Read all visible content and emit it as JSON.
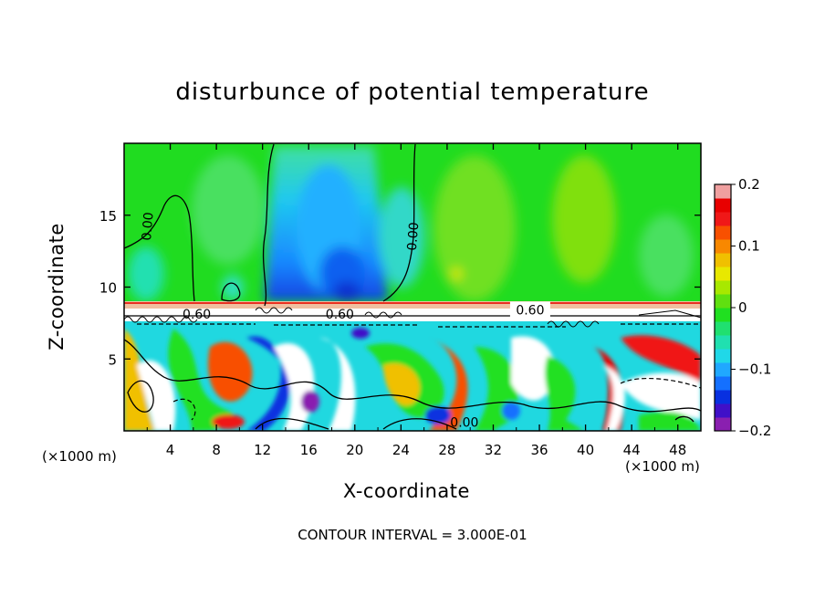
{
  "chart_data": {
    "type": "heatmap",
    "title": "disturbunce of potential temperature",
    "xlabel": "X-coordinate",
    "ylabel": "Z-coordinate",
    "x_unit_left": "(×1000 m)",
    "x_unit_right": "(×1000 m)",
    "xlim": [
      0,
      50
    ],
    "ylim": [
      0,
      20
    ],
    "x_ticks": [
      4,
      8,
      12,
      16,
      20,
      24,
      28,
      32,
      36,
      40,
      44,
      48
    ],
    "y_ticks": [
      5,
      10,
      15
    ],
    "colorbar": {
      "range": [
        -0.2,
        0.2
      ],
      "tick_values": [
        0.2,
        0.1,
        0,
        -0.1,
        -0.2
      ],
      "tick_labels": [
        "0.2",
        "0.1",
        "0",
        "−0.1",
        "−0.2"
      ],
      "colors": [
        "#8a1fb0",
        "#4010c8",
        "#0830e0",
        "#1470ff",
        "#20a8ff",
        "#20d8e8",
        "#20e0b0",
        "#20e070",
        "#20e020",
        "#60e010",
        "#a8e800",
        "#e8e800",
        "#f0c000",
        "#f88800",
        "#f85000",
        "#f01818",
        "#e80000",
        "#f0a0a0"
      ]
    },
    "contour_labels": [
      {
        "text": "0.00",
        "x": 2.4,
        "z": 14.2
      },
      {
        "text": "0.00",
        "x": 25.4,
        "z": 13.5
      },
      {
        "text": "0.60",
        "x": 35.2,
        "z": 8.1
      },
      {
        "text": "0.60",
        "x": 6.3,
        "z": 7.8
      },
      {
        "text": "0.60",
        "x": 18.7,
        "z": 7.8
      },
      {
        "text": "0.00",
        "x": 29.5,
        "z": 0.3
      }
    ],
    "footer": "CONTOUR INTERVAL = 3.000E-01"
  }
}
